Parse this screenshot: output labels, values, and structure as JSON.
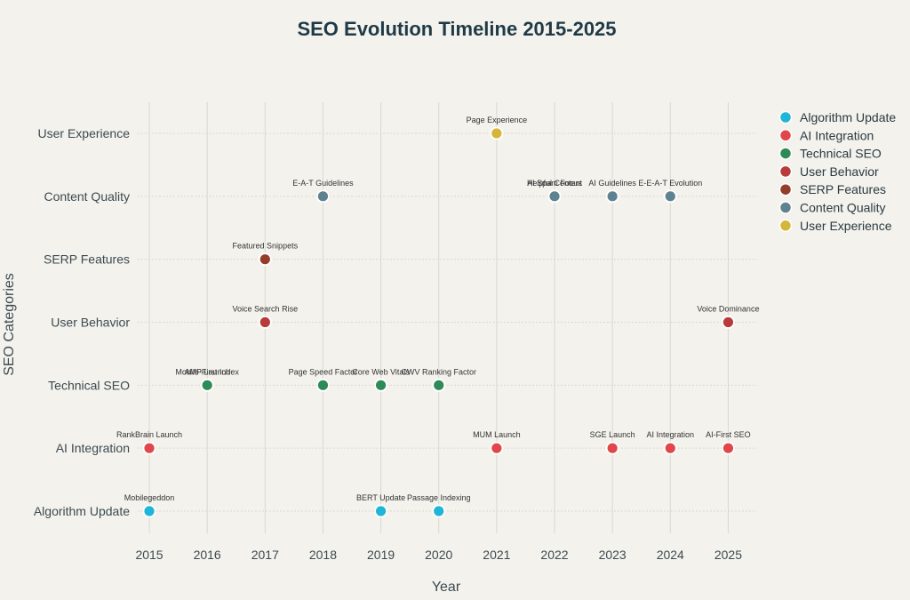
{
  "chart_data": {
    "type": "scatter",
    "title": "SEO Evolution Timeline 2015-2025",
    "xlabel": "Year",
    "ylabel": "SEO Categories",
    "x_ticks": [
      "2015",
      "2016",
      "2017",
      "2018",
      "2019",
      "2020",
      "2021",
      "2022",
      "2023",
      "2024",
      "2025"
    ],
    "xlim": [
      2014.8,
      2025.5
    ],
    "categories": [
      "Algorithm Update",
      "AI Integration",
      "Technical SEO",
      "User Behavior",
      "SERP Features",
      "Content Quality",
      "User Experience"
    ],
    "series": [
      {
        "name": "Algorithm Update",
        "color": "#1fb5d6",
        "points": [
          {
            "x": 2015,
            "label": "Mobilegeddon"
          },
          {
            "x": 2019,
            "label": "BERT Update"
          },
          {
            "x": 2020,
            "label": "Passage Indexing"
          }
        ]
      },
      {
        "name": "AI Integration",
        "color": "#e0464a",
        "points": [
          {
            "x": 2015,
            "label": "RankBrain Launch"
          },
          {
            "x": 2021,
            "label": "MUM Launch"
          },
          {
            "x": 2023,
            "label": "SGE Launch"
          },
          {
            "x": 2024,
            "label": "AI Integration"
          },
          {
            "x": 2025,
            "label": "AI-First SEO"
          }
        ]
      },
      {
        "name": "Technical SEO",
        "color": "#2e8b57",
        "points": [
          {
            "x": 2016,
            "label": "Mobile-First Index"
          },
          {
            "x": 2016,
            "label": "AMP Launch"
          },
          {
            "x": 2018,
            "label": "Page Speed Factor"
          },
          {
            "x": 2019,
            "label": "Core Web Vitals"
          },
          {
            "x": 2020,
            "label": "CWV Ranking Factor"
          }
        ]
      },
      {
        "name": "User Behavior",
        "color": "#b83a3a",
        "points": [
          {
            "x": 2017,
            "label": "Voice Search Rise"
          },
          {
            "x": 2025,
            "label": "Voice Dominance"
          }
        ]
      },
      {
        "name": "SERP Features",
        "color": "#933d2a",
        "points": [
          {
            "x": 2017,
            "label": "Featured Snippets"
          }
        ]
      },
      {
        "name": "Content Quality",
        "color": "#5f8290",
        "points": [
          {
            "x": 2018,
            "label": "E-A-T Guidelines"
          },
          {
            "x": 2022,
            "label": "Helpful Content"
          },
          {
            "x": 2022,
            "label": "AI Spam Focus"
          },
          {
            "x": 2023,
            "label": "AI Guidelines"
          },
          {
            "x": 2024,
            "label": "E-E-A-T Evolution"
          }
        ]
      },
      {
        "name": "User Experience",
        "color": "#d6b63a",
        "points": [
          {
            "x": 2021,
            "label": "Page Experience"
          }
        ]
      }
    ]
  }
}
